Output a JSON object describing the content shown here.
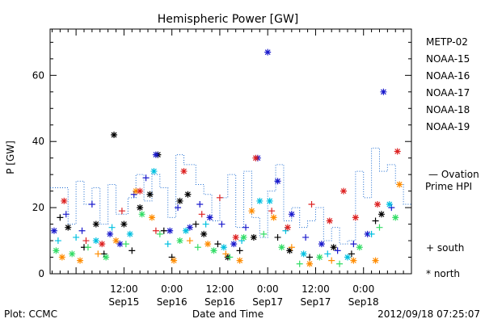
{
  "chart_data": {
    "type": "scatter",
    "title": "Hemispheric Power [GW]",
    "ylabel": "P [GW]",
    "xlabel": "Date and Time",
    "ylim": [
      0,
      74
    ],
    "xlim": [
      "2012-09-14T17:30",
      "2012-09-18T12:00"
    ],
    "yticks": [
      0,
      20,
      40,
      60
    ],
    "xticks": [
      {
        "time": "2012-09-15T12:00",
        "top": "12:00",
        "bottom": "Sep15"
      },
      {
        "time": "2012-09-16T00:00",
        "top": "0:00",
        "bottom": "Sep16"
      },
      {
        "time": "2012-09-16T12:00",
        "top": "12:00",
        "bottom": "Sep16"
      },
      {
        "time": "2012-09-17T00:00",
        "top": "0:00",
        "bottom": "Sep17"
      },
      {
        "time": "2012-09-17T12:00",
        "top": "12:00",
        "bottom": "Sep17"
      },
      {
        "time": "2012-09-18T00:00",
        "top": "0:00",
        "bottom": "Sep18"
      }
    ],
    "legend_position": "right",
    "symbol_legend": {
      "south": "+ south",
      "north": "* north"
    },
    "series": [
      {
        "name": "METP-02",
        "color": "#000000",
        "points": [
          {
            "t": "2012-09-14T20:00",
            "v": 17,
            "s": "+"
          },
          {
            "t": "2012-09-14T22:00",
            "v": 14,
            "s": "*"
          },
          {
            "t": "2012-09-15T02:00",
            "v": 8,
            "s": "+"
          },
          {
            "t": "2012-09-15T05:00",
            "v": 15,
            "s": "*"
          },
          {
            "t": "2012-09-15T07:00",
            "v": 6,
            "s": "+"
          },
          {
            "t": "2012-09-15T09:30",
            "v": 42,
            "s": "*"
          },
          {
            "t": "2012-09-15T12:00",
            "v": 15,
            "s": "*"
          },
          {
            "t": "2012-09-15T14:00",
            "v": 7,
            "s": "+"
          },
          {
            "t": "2012-09-15T16:00",
            "v": 20,
            "s": "*"
          },
          {
            "t": "2012-09-15T18:30",
            "v": 24,
            "s": "*"
          },
          {
            "t": "2012-09-15T20:30",
            "v": 36,
            "s": "*"
          },
          {
            "t": "2012-09-15T22:00",
            "v": 13,
            "s": "+"
          },
          {
            "t": "2012-09-16T00:00",
            "v": 5,
            "s": "+"
          },
          {
            "t": "2012-09-16T02:00",
            "v": 22,
            "s": "*"
          },
          {
            "t": "2012-09-16T04:00",
            "v": 24,
            "s": "*"
          },
          {
            "t": "2012-09-16T06:00",
            "v": 15,
            "s": "+"
          },
          {
            "t": "2012-09-16T08:00",
            "v": 12,
            "s": "*"
          },
          {
            "t": "2012-09-16T11:30",
            "v": 9,
            "s": "+"
          },
          {
            "t": "2012-09-16T14:00",
            "v": 5,
            "s": "*"
          },
          {
            "t": "2012-09-16T17:00",
            "v": 7,
            "s": "+"
          },
          {
            "t": "2012-09-16T20:30",
            "v": 11,
            "s": "*"
          },
          {
            "t": "2012-09-17T02:30",
            "v": 11,
            "s": "+"
          },
          {
            "t": "2012-09-17T05:30",
            "v": 7,
            "s": "*"
          },
          {
            "t": "2012-09-17T10:30",
            "v": 5,
            "s": "+"
          },
          {
            "t": "2012-09-17T16:30",
            "v": 8,
            "s": "*"
          },
          {
            "t": "2012-09-17T21:00",
            "v": 6,
            "s": "+"
          },
          {
            "t": "2012-09-18T03:00",
            "v": 16,
            "s": "+"
          },
          {
            "t": "2012-09-18T04:30",
            "v": 18,
            "s": "*"
          }
        ]
      },
      {
        "name": "NOAA-15",
        "color": "#1a1acc",
        "points": [
          {
            "t": "2012-09-14T18:30",
            "v": 13,
            "s": "*"
          },
          {
            "t": "2012-09-14T21:30",
            "v": 18,
            "s": "+"
          },
          {
            "t": "2012-09-15T01:30",
            "v": 13,
            "s": "+"
          },
          {
            "t": "2012-09-15T04:00",
            "v": 21,
            "s": "+"
          },
          {
            "t": "2012-09-15T08:30",
            "v": 12,
            "s": "*"
          },
          {
            "t": "2012-09-15T11:00",
            "v": 9,
            "s": "*"
          },
          {
            "t": "2012-09-15T14:30",
            "v": 24,
            "s": "+"
          },
          {
            "t": "2012-09-15T17:30",
            "v": 29,
            "s": "+"
          },
          {
            "t": "2012-09-15T20:00",
            "v": 36,
            "s": "*"
          },
          {
            "t": "2012-09-15T23:30",
            "v": 13,
            "s": "*"
          },
          {
            "t": "2012-09-16T01:30",
            "v": 20,
            "s": "+"
          },
          {
            "t": "2012-09-16T04:30",
            "v": 14,
            "s": "*"
          },
          {
            "t": "2012-09-16T07:00",
            "v": 21,
            "s": "+"
          },
          {
            "t": "2012-09-16T09:30",
            "v": 17,
            "s": "*"
          },
          {
            "t": "2012-09-16T12:30",
            "v": 15,
            "s": "+"
          },
          {
            "t": "2012-09-16T15:30",
            "v": 9,
            "s": "*"
          },
          {
            "t": "2012-09-16T18:30",
            "v": 14,
            "s": "+"
          },
          {
            "t": "2012-09-16T21:30",
            "v": 35,
            "s": "*"
          },
          {
            "t": "2012-09-17T00:00",
            "v": 67,
            "s": "*"
          },
          {
            "t": "2012-09-17T02:30",
            "v": 28,
            "s": "*"
          },
          {
            "t": "2012-09-17T06:00",
            "v": 18,
            "s": "*"
          },
          {
            "t": "2012-09-17T09:30",
            "v": 11,
            "s": "+"
          },
          {
            "t": "2012-09-17T13:30",
            "v": 9,
            "s": "*"
          },
          {
            "t": "2012-09-17T17:30",
            "v": 7,
            "s": "+"
          },
          {
            "t": "2012-09-17T21:30",
            "v": 9,
            "s": "+"
          },
          {
            "t": "2012-09-18T01:00",
            "v": 12,
            "s": "*"
          },
          {
            "t": "2012-09-18T05:00",
            "v": 55,
            "s": "*"
          },
          {
            "t": "2012-09-18T07:00",
            "v": 20,
            "s": "+"
          }
        ]
      },
      {
        "name": "NOAA-16",
        "color": "#00c0e0",
        "points": [
          {
            "t": "2012-09-14T19:30",
            "v": 10,
            "s": "+"
          },
          {
            "t": "2012-09-15T00:00",
            "v": 11,
            "s": "+"
          },
          {
            "t": "2012-09-15T05:00",
            "v": 10,
            "s": "*"
          },
          {
            "t": "2012-09-15T09:00",
            "v": 14,
            "s": "+"
          },
          {
            "t": "2012-09-15T13:30",
            "v": 12,
            "s": "*"
          },
          {
            "t": "2012-09-15T19:30",
            "v": 31,
            "s": "*"
          },
          {
            "t": "2012-09-15T23:00",
            "v": 9,
            "s": "+"
          },
          {
            "t": "2012-09-16T03:30",
            "v": 13,
            "s": "*"
          },
          {
            "t": "2012-09-16T08:30",
            "v": 15,
            "s": "+"
          },
          {
            "t": "2012-09-16T13:00",
            "v": 8,
            "s": "*"
          },
          {
            "t": "2012-09-16T17:30",
            "v": 10,
            "s": "+"
          },
          {
            "t": "2012-09-16T22:00",
            "v": 22,
            "s": "*"
          },
          {
            "t": "2012-09-17T00:30",
            "v": 22,
            "s": "*"
          },
          {
            "t": "2012-09-17T04:30",
            "v": 13,
            "s": "+"
          },
          {
            "t": "2012-09-17T09:00",
            "v": 6,
            "s": "*"
          },
          {
            "t": "2012-09-17T15:00",
            "v": 6,
            "s": "+"
          },
          {
            "t": "2012-09-17T20:00",
            "v": 5,
            "s": "*"
          },
          {
            "t": "2012-09-18T02:00",
            "v": 12,
            "s": "+"
          },
          {
            "t": "2012-09-18T06:30",
            "v": 21,
            "s": "*"
          }
        ]
      },
      {
        "name": "NOAA-17",
        "color": "#33dd66",
        "points": [
          {
            "t": "2012-09-14T19:00",
            "v": 7,
            "s": "*"
          },
          {
            "t": "2012-09-14T23:00",
            "v": 6,
            "s": "*"
          },
          {
            "t": "2012-09-15T03:00",
            "v": 8,
            "s": "+"
          },
          {
            "t": "2012-09-15T07:30",
            "v": 5,
            "s": "*"
          },
          {
            "t": "2012-09-15T12:30",
            "v": 9,
            "s": "+"
          },
          {
            "t": "2012-09-15T16:30",
            "v": 18,
            "s": "*"
          },
          {
            "t": "2012-09-15T21:00",
            "v": 12,
            "s": "+"
          },
          {
            "t": "2012-09-16T02:00",
            "v": 10,
            "s": "*"
          },
          {
            "t": "2012-09-16T06:30",
            "v": 8,
            "s": "+"
          },
          {
            "t": "2012-09-16T10:30",
            "v": 7,
            "s": "*"
          },
          {
            "t": "2012-09-16T14:30",
            "v": 5,
            "s": "+"
          },
          {
            "t": "2012-09-16T18:00",
            "v": 11,
            "s": "*"
          },
          {
            "t": "2012-09-16T23:00",
            "v": 12,
            "s": "+"
          },
          {
            "t": "2012-09-17T03:30",
            "v": 8,
            "s": "*"
          },
          {
            "t": "2012-09-17T08:00",
            "v": 3,
            "s": "+"
          },
          {
            "t": "2012-09-17T13:00",
            "v": 5,
            "s": "*"
          },
          {
            "t": "2012-09-17T18:00",
            "v": 3,
            "s": "+"
          },
          {
            "t": "2012-09-17T23:00",
            "v": 8,
            "s": "*"
          },
          {
            "t": "2012-09-18T04:00",
            "v": 14,
            "s": "+"
          },
          {
            "t": "2012-09-18T08:00",
            "v": 17,
            "s": "*"
          }
        ]
      },
      {
        "name": "NOAA-18",
        "color": "#ff8c00",
        "points": [
          {
            "t": "2012-09-14T20:30",
            "v": 5,
            "s": "*"
          },
          {
            "t": "2012-09-15T01:00",
            "v": 4,
            "s": "*"
          },
          {
            "t": "2012-09-15T05:30",
            "v": 6,
            "s": "+"
          },
          {
            "t": "2012-09-15T10:00",
            "v": 10,
            "s": "*"
          },
          {
            "t": "2012-09-15T15:00",
            "v": 25,
            "s": "*"
          },
          {
            "t": "2012-09-15T19:00",
            "v": 17,
            "s": "*"
          },
          {
            "t": "2012-09-16T00:30",
            "v": 4,
            "s": "*"
          },
          {
            "t": "2012-09-16T04:30",
            "v": 10,
            "s": "+"
          },
          {
            "t": "2012-09-16T09:00",
            "v": 9,
            "s": "*"
          },
          {
            "t": "2012-09-16T13:30",
            "v": 6,
            "s": "+"
          },
          {
            "t": "2012-09-16T17:00",
            "v": 4,
            "s": "*"
          },
          {
            "t": "2012-09-16T20:00",
            "v": 19,
            "s": "*"
          },
          {
            "t": "2012-09-17T01:30",
            "v": 17,
            "s": "*"
          },
          {
            "t": "2012-09-17T06:00",
            "v": 8,
            "s": "+"
          },
          {
            "t": "2012-09-17T10:30",
            "v": 3,
            "s": "*"
          },
          {
            "t": "2012-09-17T16:00",
            "v": 4,
            "s": "+"
          },
          {
            "t": "2012-09-17T21:30",
            "v": 4,
            "s": "*"
          },
          {
            "t": "2012-09-18T03:00",
            "v": 4,
            "s": "*"
          },
          {
            "t": "2012-09-18T09:00",
            "v": 27,
            "s": "*"
          }
        ]
      },
      {
        "name": "NOAA-19",
        "color": "#dd2222",
        "points": [
          {
            "t": "2012-09-14T21:00",
            "v": 22,
            "s": "*"
          },
          {
            "t": "2012-09-15T02:30",
            "v": 10,
            "s": "+"
          },
          {
            "t": "2012-09-15T06:30",
            "v": 9,
            "s": "*"
          },
          {
            "t": "2012-09-15T11:30",
            "v": 19,
            "s": "+"
          },
          {
            "t": "2012-09-15T16:00",
            "v": 25,
            "s": "*"
          },
          {
            "t": "2012-09-15T20:00",
            "v": 13,
            "s": "+"
          },
          {
            "t": "2012-09-16T03:00",
            "v": 31,
            "s": "*"
          },
          {
            "t": "2012-09-16T07:30",
            "v": 18,
            "s": "+"
          },
          {
            "t": "2012-09-16T12:00",
            "v": 23,
            "s": "+"
          },
          {
            "t": "2012-09-16T16:00",
            "v": 11,
            "s": "*"
          },
          {
            "t": "2012-09-16T21:00",
            "v": 35,
            "s": "*"
          },
          {
            "t": "2012-09-17T01:00",
            "v": 19,
            "s": "+"
          },
          {
            "t": "2012-09-17T05:00",
            "v": 14,
            "s": "*"
          },
          {
            "t": "2012-09-17T11:00",
            "v": 21,
            "s": "+"
          },
          {
            "t": "2012-09-17T15:30",
            "v": 16,
            "s": "*"
          },
          {
            "t": "2012-09-17T19:00",
            "v": 25,
            "s": "*"
          },
          {
            "t": "2012-09-17T22:00",
            "v": 17,
            "s": "*"
          },
          {
            "t": "2012-09-18T03:30",
            "v": 21,
            "s": "*"
          },
          {
            "t": "2012-09-18T08:30",
            "v": 37,
            "s": "*"
          }
        ]
      }
    ],
    "ovation": {
      "name": "— Ovation Prime HPI",
      "color": "#1a6ad0",
      "style": "dotted step",
      "points": [
        {
          "t": "2012-09-14T17:30",
          "v": 26
        },
        {
          "t": "2012-09-14T22:00",
          "v": 15
        },
        {
          "t": "2012-09-15T00:00",
          "v": 28
        },
        {
          "t": "2012-09-15T02:00",
          "v": 21
        },
        {
          "t": "2012-09-15T04:00",
          "v": 26
        },
        {
          "t": "2012-09-15T06:00",
          "v": 15
        },
        {
          "t": "2012-09-15T08:00",
          "v": 27
        },
        {
          "t": "2012-09-15T10:00",
          "v": 18
        },
        {
          "t": "2012-09-15T13:00",
          "v": 23
        },
        {
          "t": "2012-09-15T15:00",
          "v": 30
        },
        {
          "t": "2012-09-15T17:00",
          "v": 22
        },
        {
          "t": "2012-09-15T19:00",
          "v": 30
        },
        {
          "t": "2012-09-15T21:00",
          "v": 26
        },
        {
          "t": "2012-09-15T23:00",
          "v": 17
        },
        {
          "t": "2012-09-16T01:00",
          "v": 36
        },
        {
          "t": "2012-09-16T03:00",
          "v": 33
        },
        {
          "t": "2012-09-16T06:00",
          "v": 27
        },
        {
          "t": "2012-09-16T08:00",
          "v": 24
        },
        {
          "t": "2012-09-16T10:00",
          "v": 16
        },
        {
          "t": "2012-09-16T12:00",
          "v": 23
        },
        {
          "t": "2012-09-16T14:00",
          "v": 30
        },
        {
          "t": "2012-09-16T16:00",
          "v": 14
        },
        {
          "t": "2012-09-16T18:00",
          "v": 31
        },
        {
          "t": "2012-09-16T20:00",
          "v": 17
        },
        {
          "t": "2012-09-16T22:00",
          "v": 11
        },
        {
          "t": "2012-09-17T00:00",
          "v": 25
        },
        {
          "t": "2012-09-17T02:00",
          "v": 33
        },
        {
          "t": "2012-09-17T04:00",
          "v": 16
        },
        {
          "t": "2012-09-17T06:00",
          "v": 20
        },
        {
          "t": "2012-09-17T08:00",
          "v": 14
        },
        {
          "t": "2012-09-17T10:00",
          "v": 16
        },
        {
          "t": "2012-09-17T12:00",
          "v": 20
        },
        {
          "t": "2012-09-17T14:00",
          "v": 10
        },
        {
          "t": "2012-09-17T16:00",
          "v": 14
        },
        {
          "t": "2012-09-17T18:00",
          "v": 9
        },
        {
          "t": "2012-09-17T20:00",
          "v": 10
        },
        {
          "t": "2012-09-17T22:00",
          "v": 31
        },
        {
          "t": "2012-09-18T00:00",
          "v": 23
        },
        {
          "t": "2012-09-18T02:00",
          "v": 38
        },
        {
          "t": "2012-09-18T04:00",
          "v": 31
        },
        {
          "t": "2012-09-18T06:00",
          "v": 33
        },
        {
          "t": "2012-09-18T08:00",
          "v": 27
        },
        {
          "t": "2012-09-18T10:00",
          "v": 21
        },
        {
          "t": "2012-09-18T12:00",
          "v": 21
        }
      ]
    }
  },
  "footer": {
    "left": "Plot: CCMC",
    "right": "2012/09/18 07:25:07"
  }
}
